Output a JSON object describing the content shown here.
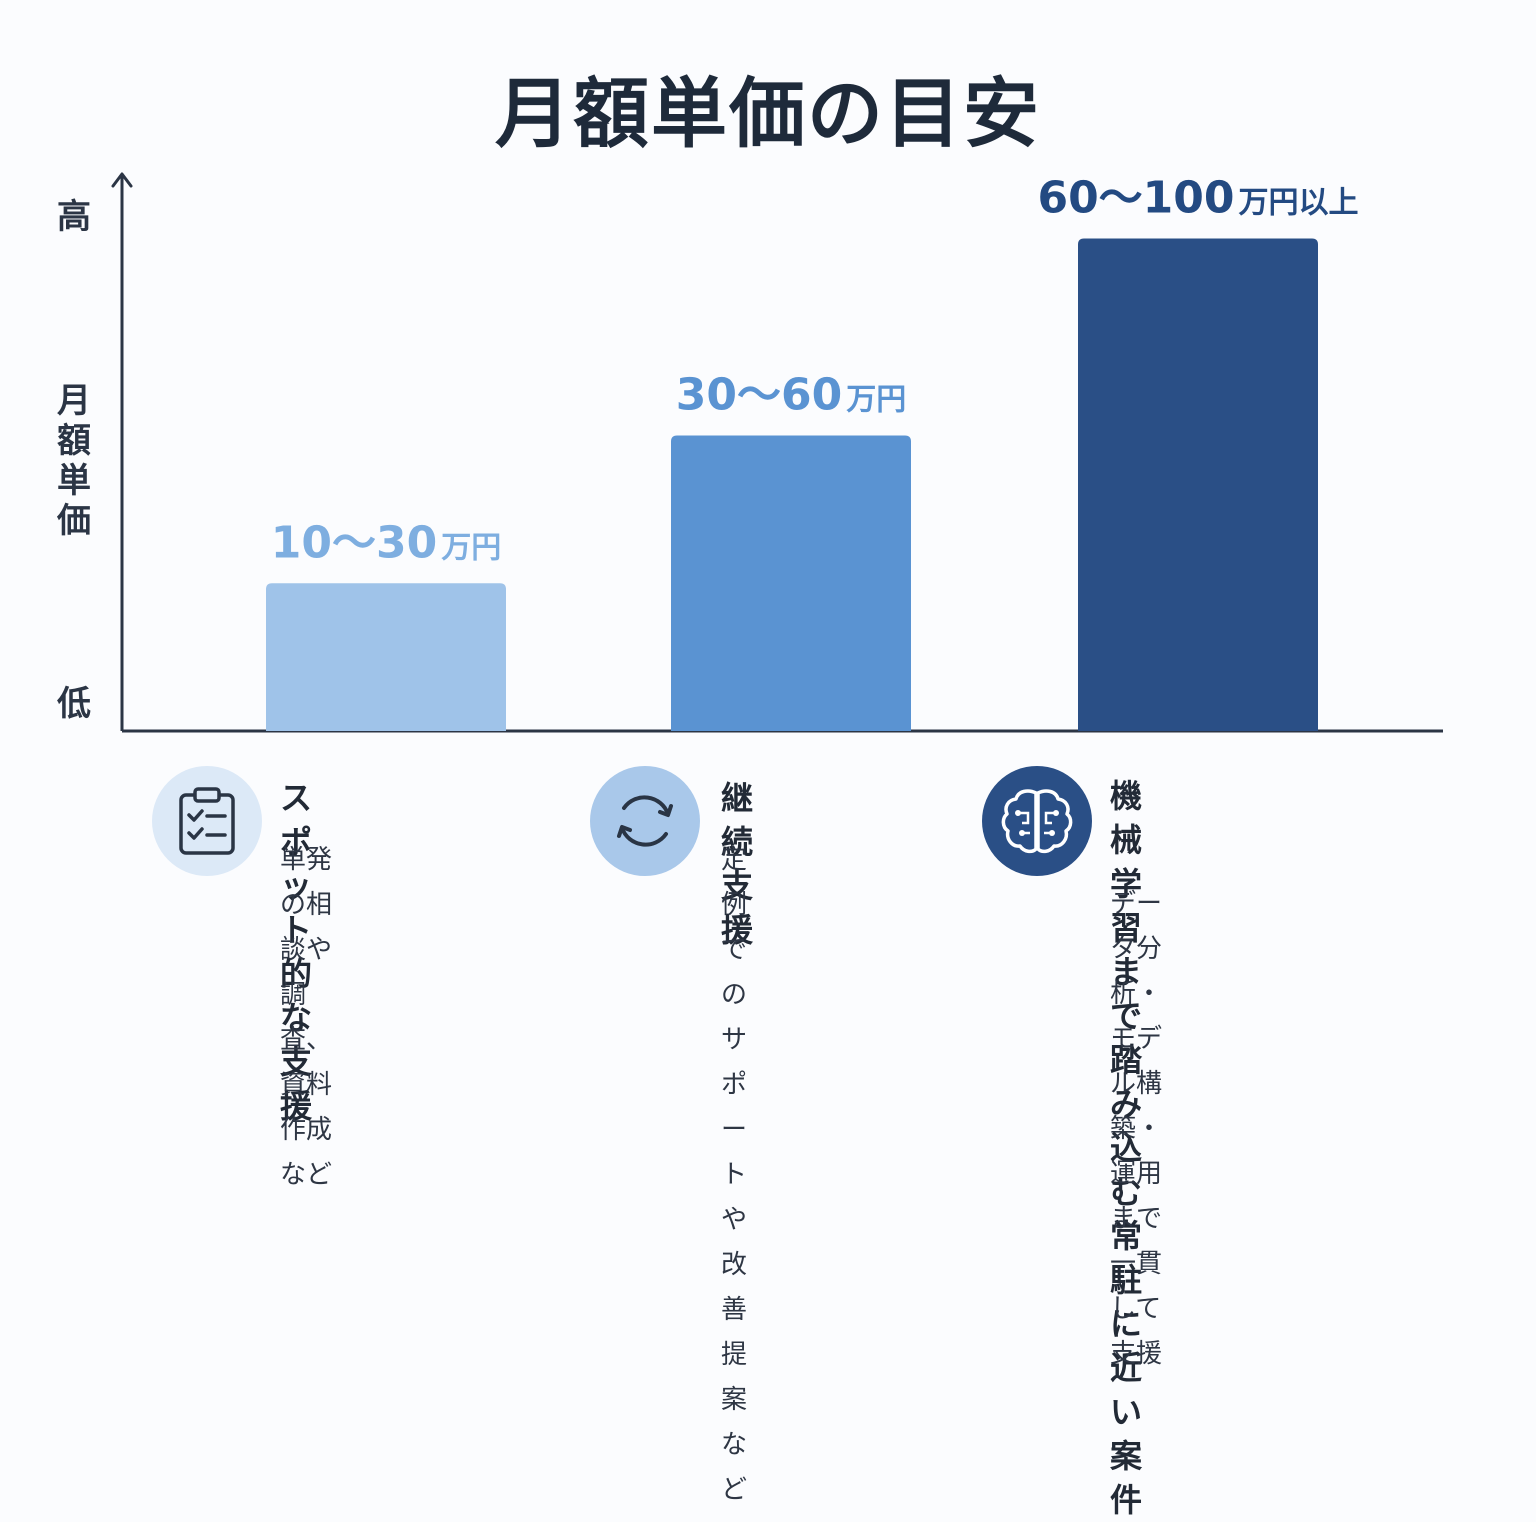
{
  "title": "月額単価の目安",
  "chart_data": {
    "type": "bar",
    "title": "月額単価の目安",
    "ylabel": "月額単価",
    "y_axis_top_label": "高",
    "y_axis_bottom_label": "低",
    "categories": [
      "スポット的な支援",
      "継続支援",
      "機械学習まで踏み込む常駐に近い案件"
    ],
    "ranges": [
      [
        10,
        30
      ],
      [
        30,
        60
      ],
      [
        60,
        100
      ]
    ],
    "values": [
      30,
      60,
      100
    ],
    "unit": "万円",
    "ylim": [
      0,
      120
    ],
    "grid": false,
    "bar_labels": [
      {
        "num": "10～30",
        "unit": "万円"
      },
      {
        "num": "30～60",
        "unit": "万円"
      },
      {
        "num": "60～100",
        "unit": "万円以上"
      }
    ],
    "colors": [
      "#9fc3e9",
      "#5a93d2",
      "#2a4f86"
    ],
    "label_colors": [
      "#7eaee0",
      "#5a93d2",
      "#234a82"
    ]
  },
  "cards": [
    {
      "icon": "clipboard-checklist-icon",
      "heading": "スポット的な支援",
      "desc": "単発の相談や調査、\n資料作成など",
      "circle_color": "#dce9f7",
      "icon_color": "#2a3545"
    },
    {
      "icon": "refresh-cycle-icon",
      "heading": "継続支援",
      "desc": "定例でのサポートや\n改善提案など",
      "circle_color": "#a9c8ea",
      "icon_color": "#2a3545"
    },
    {
      "icon": "brain-circuit-icon",
      "heading": "機械学習まで踏み込む\n常駐に近い案件",
      "desc": "データ分析・モデル構築・\n運用まで一貫して支援",
      "circle_color": "#2a4f86",
      "icon_color": "#ffffff"
    }
  ]
}
